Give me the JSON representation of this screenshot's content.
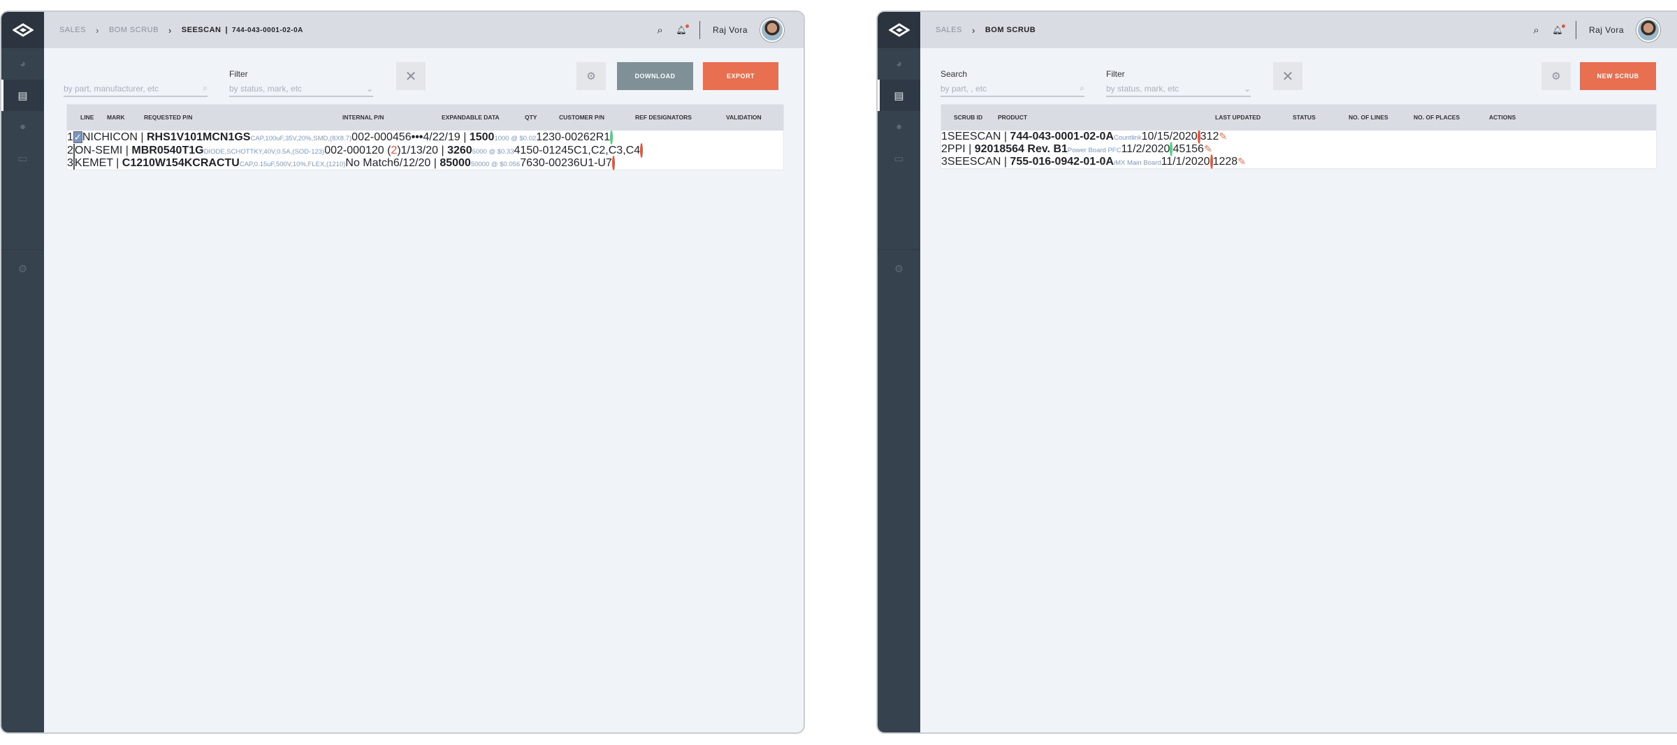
{
  "colors": {
    "accent": "#e86f4f",
    "download": "#7f9097",
    "sidebar": "#37424f",
    "ok": "#4cd47c",
    "error": "#e8553a",
    "link": "#7c98c4"
  },
  "sidebar": {
    "icons": [
      "logo-icon",
      "dashboard-pie-icon",
      "bom-document-icon",
      "ideas-bulb-icon",
      "ticket-icon",
      "settings-gear-icon"
    ],
    "active": "bom-document-icon"
  },
  "user": {
    "name": "Raj Vora"
  },
  "left": {
    "breadcrumb": {
      "root": "SALES",
      "mid": "BOM SCRUB",
      "current": "SEESCAN",
      "part": "744-043-0001-02-0A"
    },
    "search": {
      "placeholder": "by part, manufacturer, etc"
    },
    "filter": {
      "label": "Filter",
      "placeholder": "by status, mark, etc"
    },
    "download_label": "DOWNLOAD",
    "export_label": "EXPORT",
    "columns": [
      "LINE",
      "MARK",
      "REQUESTED  P/N",
      "INTERNAL P/N",
      "EXPANDABLE DATA",
      "QTY",
      "CUSTOMER P/N",
      "REF DESIGNATORS",
      "VALIDATION"
    ],
    "rows": [
      {
        "line": "1",
        "marked": true,
        "mfr": "NICHICON | ",
        "part": "RHS1V101MCN1GS",
        "desc": "CAP,100uF,35V,20%,SMD,(8X8.7)",
        "internal": "002-000456",
        "internal_count": "",
        "more": "•••",
        "date": "4/22/19 | ",
        "qty_data": "1500",
        "price": "1000 @ $0.02",
        "qty": "1",
        "customer": "230-00262",
        "ref": "R1",
        "valid": "ok"
      },
      {
        "line": "2",
        "marked": false,
        "mfr": "ON-SEMI | ",
        "part": "MBR0540T1G",
        "desc": "DIODE,SCHOTTKY,40V,0.5A,(SOD-123)",
        "internal": "002-000120 ",
        "internal_count": "2",
        "more": "",
        "date": "1/13/20 | ",
        "qty_data": "3260",
        "price": "5000 @ $0.33",
        "qty": "4",
        "customer": "150-01245",
        "ref": "C1,C2,C3,C4",
        "valid": "error"
      },
      {
        "line": "3",
        "marked": false,
        "mfr": "KEMET | ",
        "part": "C1210W154KCRACTU",
        "desc": "CAP,0.15uF,500V,10%,FLEX,(1210)",
        "internal": "No Match",
        "internal_count": "",
        "more": "",
        "date": "6/12/20 | ",
        "qty_data": "85000",
        "price": "50000 @ $0.056",
        "qty": "7",
        "customer": "630-00236",
        "ref": "U1-U7",
        "valid": "error"
      }
    ]
  },
  "right": {
    "breadcrumb": {
      "root": "SALES",
      "current": "BOM SCRUB"
    },
    "search": {
      "label": "Search",
      "placeholder": "by part,  , etc"
    },
    "filter": {
      "label": "Filter",
      "placeholder": "by status, mark, etc"
    },
    "new_label": "NEW SCRUB",
    "columns": [
      "SCRUB ID",
      "PRODUCT",
      "LAST UPDATED",
      "STATUS",
      "NO. OF LINES",
      "NO. OF PLACES",
      "ACTIONS"
    ],
    "rows": [
      {
        "id": "1",
        "company": "SEESCAN | ",
        "product": "744-043-0001-02-0A",
        "name": "Countlink",
        "updated": "10/15/2020",
        "status": "error",
        "lines": "3",
        "places": "12"
      },
      {
        "id": "2",
        "company": "PPI | ",
        "product": "92018564 Rev. B1",
        "name": "Power Board PFC",
        "updated": "11/2/2020",
        "status": "ok",
        "lines": "45",
        "places": "156"
      },
      {
        "id": "3",
        "company": "SEESCAN | ",
        "product": "755-016-0942-01-0A",
        "name": "iMX Main Board",
        "updated": "11/1/2020",
        "status": "error",
        "lines": "12",
        "places": "28"
      }
    ]
  }
}
